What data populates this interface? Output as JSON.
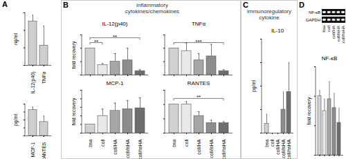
{
  "panel_labels": [
    "A",
    "B",
    "C",
    "D"
  ],
  "headings": [
    {
      "panel": "B",
      "lines": [
        "inflammatory",
        "cytokines/chemokines"
      ]
    },
    {
      "panel": "C",
      "lines": [
        "immunoregulatory",
        "cytokine"
      ]
    }
  ],
  "blot": {
    "panel": "D",
    "bands": [
      "NF-κB",
      "GAPDH"
    ],
    "lanes": [
      "bsa",
      "coll",
      "coll/HA",
      "coll/lsHA",
      "coll/hsHA"
    ]
  },
  "chart_data": [
    {
      "panel": "A",
      "type": "bar",
      "y_label": "ng/ml",
      "categories": [
        "IL-12(p40)",
        "TNFα"
      ],
      "values": [
        10,
        4.5
      ],
      "errors": [
        1.5,
        4.5
      ],
      "color": "#cfcfcf",
      "ylim": [
        0,
        12
      ],
      "yticks": [
        0,
        4,
        8,
        12
      ],
      "tick_labels": "x"
    },
    {
      "panel": "A",
      "type": "bar",
      "y_label": "pg/ml",
      "categories": [
        "MCP-1",
        "RANTES"
      ],
      "values": [
        130,
        70
      ],
      "errors": [
        15,
        30
      ],
      "color": "#cfcfcf",
      "ylim": [
        0,
        160
      ],
      "yticks": [
        0,
        40,
        80,
        120,
        160
      ],
      "tick_labels": "x"
    },
    {
      "panel": "B",
      "type": "bar",
      "title": "IL-12(p40)",
      "y_label": "fold recovery",
      "categories": [
        "bsa",
        "coll",
        "coll/HA",
        "coll/lsHA",
        "coll/hsHA"
      ],
      "values": [
        1.0,
        0.38,
        0.5,
        0.55,
        0.15
      ],
      "errors": [
        0,
        0.05,
        0.3,
        0.45,
        0.05
      ],
      "colors": [
        "#d0d0d0",
        "#e8e8e8",
        "#a6a6a6",
        "#8c8c8c",
        "#6e6e6e"
      ],
      "ylim": [
        0,
        1.5
      ],
      "yticks": [
        0,
        0.5,
        1,
        1.5
      ],
      "tick_labels": false,
      "significance": [
        {
          "from": "bsa",
          "to": "coll",
          "label": "**"
        },
        {
          "from": "bsa",
          "to": "coll/hsHA",
          "label": "**"
        }
      ]
    },
    {
      "panel": "B",
      "type": "bar",
      "title": "TNFα",
      "categories": [
        "bsa",
        "coll",
        "coll/HA",
        "coll/lsHA",
        "coll/hsHA"
      ],
      "values": [
        1.0,
        0.9,
        0.55,
        0.7,
        0.15
      ],
      "errors": [
        0,
        0.3,
        0.25,
        0.45,
        0.05
      ],
      "colors": [
        "#d0d0d0",
        "#e8e8e8",
        "#a6a6a6",
        "#8c8c8c",
        "#6e6e6e"
      ],
      "ylim": [
        0,
        1.5
      ],
      "yticks": [
        0,
        0.5,
        1,
        1.5
      ],
      "tick_labels": false,
      "significance": [
        {
          "from": "bsa",
          "to": "coll/hsHA",
          "label": "***"
        }
      ]
    },
    {
      "panel": "B",
      "type": "bar",
      "title": "MCP-1",
      "y_label": "fold recovery",
      "categories": [
        "bsa",
        "coll",
        "coll/HA",
        "coll/lsHA",
        "coll/hsHA"
      ],
      "values": [
        1.0,
        2.0,
        2.6,
        2.8,
        2.9
      ],
      "errors": [
        0,
        0.8,
        0.9,
        1.0,
        1.2
      ],
      "colors": [
        "#d0d0d0",
        "#e8e8e8",
        "#a6a6a6",
        "#8c8c8c",
        "#6e6e6e"
      ],
      "ylim": [
        0,
        5
      ],
      "yticks": [
        0,
        1,
        2,
        3,
        4,
        5
      ],
      "tick_labels": "x"
    },
    {
      "panel": "B",
      "type": "bar",
      "title": "RANTES",
      "categories": [
        "bsa",
        "coll",
        "coll/HA",
        "coll/lsHA",
        "coll/hsHA"
      ],
      "values": [
        1.0,
        1.0,
        0.6,
        0.35,
        0.35
      ],
      "errors": [
        0,
        0.1,
        0.15,
        0.1,
        0.05
      ],
      "colors": [
        "#d0d0d0",
        "#e8e8e8",
        "#a6a6a6",
        "#8c8c8c",
        "#6e6e6e"
      ],
      "ylim": [
        0,
        1.5
      ],
      "yticks": [
        0,
        0.5,
        1,
        1.5
      ],
      "tick_labels": "x",
      "significance": [
        {
          "from": "bsa",
          "to": "coll/hsHA",
          "label": "**"
        }
      ]
    },
    {
      "panel": "C",
      "type": "bar",
      "title": "IL-10",
      "y_label": "pg/ml",
      "categories": [
        "bsa",
        "coll",
        "coll/HA",
        "coll/lsHA",
        "coll/hsHA"
      ],
      "values": [
        8,
        0,
        0,
        20,
        35
      ],
      "errors": [
        8,
        0,
        0,
        15,
        25
      ],
      "colors": [
        "#d0d0d0",
        "#e8e8e8",
        "#a6a6a6",
        "#8c8c8c",
        "#6e6e6e"
      ],
      "ylim": [
        0,
        80
      ],
      "yticks": [
        0,
        20,
        40,
        60,
        80
      ],
      "tick_labels": "x"
    },
    {
      "panel": "D",
      "type": "bar",
      "title": "NF-κB",
      "y_label": "fold recovery",
      "categories": [
        "bsa",
        "coll",
        "coll/HA",
        "coll/lsHA",
        "coll/hsHA"
      ],
      "values": [
        1.0,
        0.75,
        0.95,
        0.8,
        0.55
      ],
      "errors": [
        0.1,
        0.2,
        0.3,
        0.25,
        0.25
      ],
      "colors": [
        "#d0d0d0",
        "#e8e8e8",
        "#a6a6a6",
        "#8c8c8c",
        "#6e6e6e"
      ],
      "ylim": [
        0,
        1.5
      ],
      "yticks": [
        0,
        0.5,
        1,
        1.5
      ],
      "tick_labels": false
    }
  ]
}
